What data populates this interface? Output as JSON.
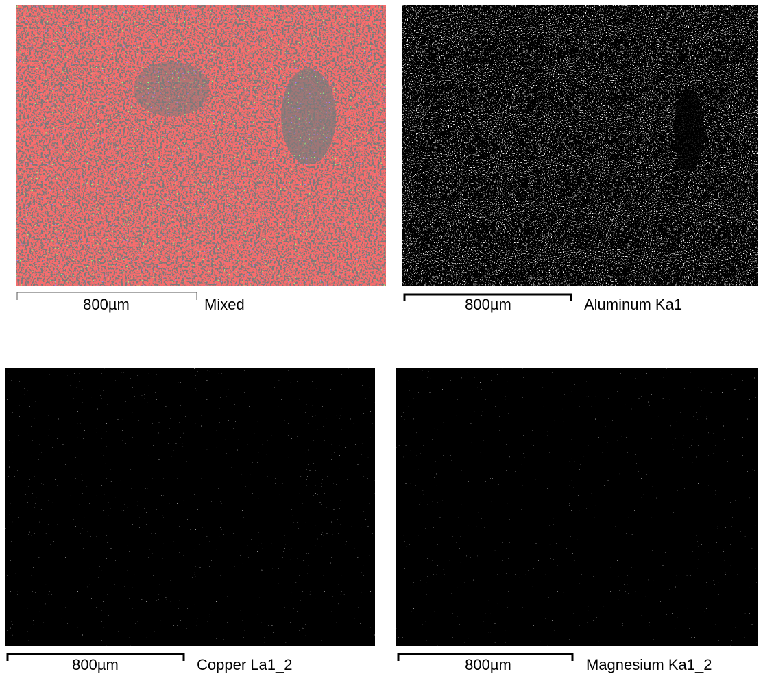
{
  "panels": [
    {
      "label": "Mixed",
      "scale_bar": "800µm"
    },
    {
      "label": "Aluminum Ka1",
      "scale_bar": "800µm"
    },
    {
      "label": "Copper La1_2",
      "scale_bar": "800µm"
    },
    {
      "label": "Magnesium Ka1_2",
      "scale_bar": "800µm"
    }
  ]
}
